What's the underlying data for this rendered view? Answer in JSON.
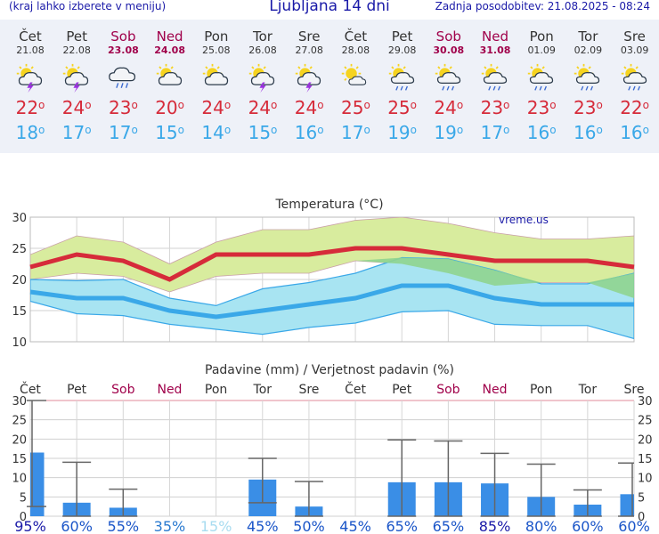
{
  "header": {
    "left_note": "(kraj lahko izberete v meniju)",
    "title": "Ljubljana 14 dni",
    "updated": "Zadnja posodobitev: 21.08.2025 - 08:24"
  },
  "forecast": {
    "days": [
      {
        "name": "Čet",
        "date": "21.08",
        "weekend": false,
        "icon": "sun-cloud-lightning-icon",
        "tmax": "22",
        "tmin": "18"
      },
      {
        "name": "Pet",
        "date": "22.08",
        "weekend": false,
        "icon": "sun-cloud-lightning-icon",
        "tmax": "24",
        "tmin": "17"
      },
      {
        "name": "Sob",
        "date": "23.08",
        "weekend": true,
        "icon": "cloud-rain-icon",
        "tmax": "23",
        "tmin": "17"
      },
      {
        "name": "Ned",
        "date": "24.08",
        "weekend": true,
        "icon": "sun-cloud-icon",
        "tmax": "20",
        "tmin": "15"
      },
      {
        "name": "Pon",
        "date": "25.08",
        "weekend": false,
        "icon": "sun-cloud-icon",
        "tmax": "24",
        "tmin": "14"
      },
      {
        "name": "Tor",
        "date": "26.08",
        "weekend": false,
        "icon": "sun-cloud-lightning-icon",
        "tmax": "24",
        "tmin": "15"
      },
      {
        "name": "Sre",
        "date": "27.08",
        "weekend": false,
        "icon": "sun-cloud-lightning-icon",
        "tmax": "24",
        "tmin": "16"
      },
      {
        "name": "Čet",
        "date": "28.08",
        "weekend": false,
        "icon": "sun-small-cloud-icon",
        "tmax": "25",
        "tmin": "17"
      },
      {
        "name": "Pet",
        "date": "29.08",
        "weekend": false,
        "icon": "sun-cloud-rain-icon",
        "tmax": "25",
        "tmin": "19"
      },
      {
        "name": "Sob",
        "date": "30.08",
        "weekend": true,
        "icon": "sun-cloud-rain-icon",
        "tmax": "24",
        "tmin": "19"
      },
      {
        "name": "Ned",
        "date": "31.08",
        "weekend": true,
        "icon": "sun-cloud-rain-icon",
        "tmax": "23",
        "tmin": "17"
      },
      {
        "name": "Pon",
        "date": "01.09",
        "weekend": false,
        "icon": "sun-cloud-rain-icon",
        "tmax": "23",
        "tmin": "16"
      },
      {
        "name": "Tor",
        "date": "02.09",
        "weekend": false,
        "icon": "sun-cloud-rain-icon",
        "tmax": "23",
        "tmin": "16"
      },
      {
        "name": "Sre",
        "date": "03.09",
        "weekend": false,
        "icon": "sun-cloud-rain-icon",
        "tmax": "22",
        "tmin": "16"
      }
    ]
  },
  "colors": {
    "max": "#d62b3a",
    "min": "#3aa8e8",
    "maxband": "#d8ec9e",
    "minband": "#a8e4f2",
    "overlap": "#8fd48f",
    "bar": "#3a8ee6",
    "weekend": "#a0004a",
    "title": "#1a1aa8"
  },
  "chart_data": [
    {
      "type": "line",
      "title": "Temperatura (°C)",
      "watermark": "vreme.us",
      "ylim": [
        10,
        30
      ],
      "yticks": [
        10,
        15,
        20,
        25,
        30
      ],
      "grid": true,
      "categories": [
        "21.08",
        "22.08",
        "23.08",
        "24.08",
        "25.08",
        "26.08",
        "27.08",
        "28.08",
        "29.08",
        "30.08",
        "31.08",
        "01.09",
        "02.09",
        "03.09"
      ],
      "series": [
        {
          "key": "max",
          "values": [
            22,
            24,
            23,
            20,
            24,
            24,
            24,
            25,
            25,
            24,
            23,
            23,
            23,
            22
          ]
        },
        {
          "key": "min",
          "values": [
            18,
            17,
            17,
            15,
            14,
            15,
            16,
            17,
            19,
            19,
            17,
            16,
            16,
            16
          ]
        }
      ],
      "bands": [
        {
          "key": "max_range",
          "low": [
            20,
            21,
            20.5,
            18,
            20.5,
            21,
            21,
            23,
            22.5,
            21,
            19,
            19.5,
            19.5,
            17
          ],
          "high": [
            24,
            27,
            26,
            22.5,
            26,
            28,
            28,
            29.5,
            30,
            29,
            27.5,
            26.5,
            26.5,
            27
          ]
        },
        {
          "key": "min_range",
          "low": [
            16.5,
            14.5,
            14.2,
            12.8,
            12,
            11.2,
            12.3,
            13,
            14.8,
            15,
            12.8,
            12.6,
            12.6,
            10.5
          ],
          "high": [
            20,
            19.8,
            20,
            17,
            15.8,
            18.5,
            19.5,
            21,
            23.5,
            23.3,
            21.5,
            19.3,
            19.3,
            21
          ]
        }
      ]
    },
    {
      "type": "bar",
      "title": "Padavine (mm) / Verjetnost padavin (%)",
      "ylim": [
        0,
        30
      ],
      "yticks": [
        0,
        5,
        10,
        15,
        20,
        25,
        30
      ],
      "grid": true,
      "categories": [
        "Čet",
        "Pet",
        "Sob",
        "Ned",
        "Pon",
        "Tor",
        "Sre",
        "Čet",
        "Pet",
        "Sob",
        "Ned",
        "Pon",
        "Tor",
        "Sre"
      ],
      "weekend": [
        false,
        false,
        true,
        true,
        false,
        false,
        false,
        false,
        false,
        true,
        true,
        false,
        false,
        false
      ],
      "values": [
        16.5,
        3.5,
        2.2,
        0,
        0,
        9.5,
        2.5,
        0,
        8.8,
        8.8,
        8.5,
        5,
        3,
        5.7
      ],
      "range_low": [
        2.5,
        0,
        0,
        0,
        0,
        3.5,
        0,
        0,
        0,
        0,
        0,
        0,
        0,
        0
      ],
      "range_high": [
        30,
        14,
        7,
        0,
        0,
        15,
        9,
        0,
        19.8,
        19.5,
        16.3,
        13.5,
        6.8,
        13.8
      ],
      "probability": [
        "95%",
        "60%",
        "55%",
        "35%",
        "15%",
        "45%",
        "50%",
        "45%",
        "65%",
        "65%",
        "85%",
        "80%",
        "60%",
        "60%"
      ],
      "probability_level": [
        3,
        2,
        2,
        1,
        0,
        2,
        2,
        2,
        2,
        2,
        3,
        2,
        2,
        2
      ]
    }
  ]
}
